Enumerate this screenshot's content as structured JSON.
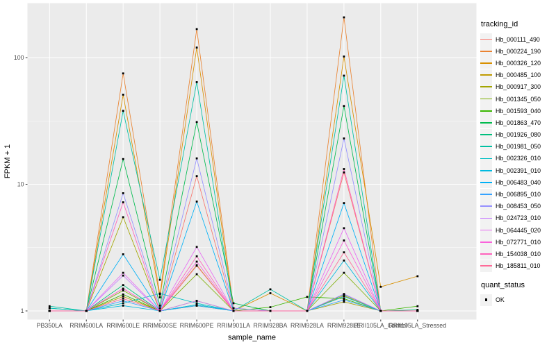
{
  "figure": {
    "background": "#FFFFFF",
    "panel_background": "#EBEBEB",
    "grid_color": "#FFFFFF",
    "axis_text_color": "#4D4D4D",
    "tick_mark_color": "#333333"
  },
  "chart_data": {
    "type": "line",
    "title": "",
    "xlabel": "sample_name",
    "ylabel": "FPKM + 1",
    "y_scale": "log10",
    "ylim": [
      0.85,
      280
    ],
    "y_major_ticks": [
      1,
      10,
      100
    ],
    "y_major_tick_labels": [
      "1",
      "10",
      "100"
    ],
    "y_minor_ticks": [
      3.162,
      31.623
    ],
    "grid": "on",
    "legend_position": "right",
    "marker": {
      "shape": "square",
      "color": "#000000",
      "size": 2.8
    },
    "categories": [
      "PB350LA",
      "RRIM600LA",
      "RRIM600LE",
      "RRIM600SE",
      "RRIM600PE",
      "RRIM901LA",
      "RRIM928BA",
      "RRIM928LA",
      "RRIM928LE",
      "RRII105LA_Control",
      "RRII105LA_Stressed"
    ],
    "series": [
      {
        "name": "Hb_000111_490",
        "color": "#F8766D",
        "values": [
          1.0,
          1.0,
          1.5,
          1.0,
          11.6,
          1.0,
          1.0,
          1.0,
          12.4,
          1.0,
          1.0
        ]
      },
      {
        "name": "Hb_000224_190",
        "color": "#EA8331",
        "values": [
          1.0,
          1.0,
          75,
          1.35,
          168,
          1.05,
          1.0,
          1.0,
          208,
          1.0,
          1.0
        ]
      },
      {
        "name": "Hb_000326_120",
        "color": "#D89000",
        "values": [
          1.0,
          1.0,
          51,
          1.28,
          120,
          1.0,
          1.38,
          1.0,
          102,
          1.55,
          1.88
        ]
      },
      {
        "name": "Hb_000485_100",
        "color": "#C09B00",
        "values": [
          1.0,
          1.0,
          1.3,
          1.0,
          2.3,
          1.0,
          1.0,
          1.0,
          1.32,
          1.0,
          1.0
        ]
      },
      {
        "name": "Hb_000917_300",
        "color": "#A3A500",
        "values": [
          1.0,
          1.0,
          5.5,
          1.0,
          1.2,
          1.0,
          1.0,
          1.0,
          1.18,
          1.0,
          1.0
        ]
      },
      {
        "name": "Hb_001345_050",
        "color": "#7CAE00",
        "values": [
          1.0,
          1.0,
          1.45,
          1.0,
          1.95,
          1.0,
          1.0,
          1.0,
          2.0,
          1.0,
          1.0
        ]
      },
      {
        "name": "Hb_001593_040",
        "color": "#39B600",
        "values": [
          1.0,
          1.0,
          1.35,
          1.0,
          1.1,
          1.0,
          1.07,
          1.29,
          1.25,
          1.0,
          1.09
        ]
      },
      {
        "name": "Hb_001863_470",
        "color": "#00BB4E",
        "values": [
          1.05,
          1.0,
          15.8,
          1.1,
          31,
          1.15,
          1.0,
          1.0,
          41.5,
          1.0,
          1.0
        ]
      },
      {
        "name": "Hb_001926_080",
        "color": "#00BF7D",
        "values": [
          1.0,
          1.0,
          1.6,
          1.0,
          1.12,
          1.0,
          1.0,
          1.0,
          1.35,
          1.0,
          1.02
        ]
      },
      {
        "name": "Hb_001981_050",
        "color": "#00C1A3",
        "values": [
          1.09,
          1.0,
          38,
          1.76,
          64,
          1.0,
          1.48,
          1.0,
          72,
          1.0,
          1.0
        ]
      },
      {
        "name": "Hb_002326_010",
        "color": "#00BFC4",
        "values": [
          1.05,
          1.0,
          1.15,
          1.37,
          1.15,
          1.0,
          1.0,
          1.0,
          1.3,
          1.0,
          1.0
        ]
      },
      {
        "name": "Hb_002391_010",
        "color": "#00BAE0",
        "values": [
          1.0,
          1.0,
          1.1,
          1.0,
          1.12,
          1.0,
          1.0,
          1.0,
          2.5,
          1.0,
          1.0
        ]
      },
      {
        "name": "Hb_006483_040",
        "color": "#00B0F6",
        "values": [
          1.0,
          1.0,
          2.8,
          1.0,
          7.3,
          1.0,
          1.0,
          1.0,
          7.1,
          1.0,
          1.0
        ]
      },
      {
        "name": "Hb_006895_010",
        "color": "#35A2FF",
        "values": [
          1.0,
          1.0,
          1.2,
          1.0,
          1.1,
          1.0,
          1.0,
          1.0,
          1.22,
          1.0,
          1.0
        ]
      },
      {
        "name": "Hb_008453_050",
        "color": "#9590FF",
        "values": [
          1.0,
          1.0,
          8.5,
          1.05,
          16,
          1.05,
          1.0,
          1.0,
          23,
          1.0,
          1.0
        ]
      },
      {
        "name": "Hb_024723_010",
        "color": "#C77CFF",
        "values": [
          1.0,
          1.0,
          1.9,
          1.0,
          1.2,
          1.0,
          1.0,
          1.0,
          1.36,
          1.0,
          1.0
        ]
      },
      {
        "name": "Hb_064445_020",
        "color": "#E76BF3",
        "values": [
          1.0,
          1.0,
          2.0,
          1.0,
          3.2,
          1.0,
          1.0,
          1.0,
          4.5,
          1.0,
          1.0
        ]
      },
      {
        "name": "Hb_072771_010",
        "color": "#FA62DB",
        "values": [
          1.0,
          1.0,
          1.5,
          1.0,
          2.45,
          1.0,
          1.0,
          1.0,
          3.6,
          1.0,
          1.0
        ]
      },
      {
        "name": "Hb_154038_010",
        "color": "#FF62BC",
        "values": [
          1.0,
          1.0,
          7.2,
          1.0,
          2.7,
          1.0,
          1.0,
          1.0,
          13.2,
          1.0,
          1.0
        ]
      },
      {
        "name": "Hb_185811_010",
        "color": "#FF6A98",
        "values": [
          1.0,
          1.0,
          1.25,
          1.0,
          2.27,
          1.0,
          1.0,
          1.0,
          2.9,
          1.0,
          1.0
        ]
      }
    ],
    "legends": {
      "color": {
        "title": "tracking_id"
      },
      "shape": {
        "title": "quant_status",
        "items": [
          {
            "label": "OK",
            "marker": "black-square"
          }
        ]
      }
    }
  }
}
